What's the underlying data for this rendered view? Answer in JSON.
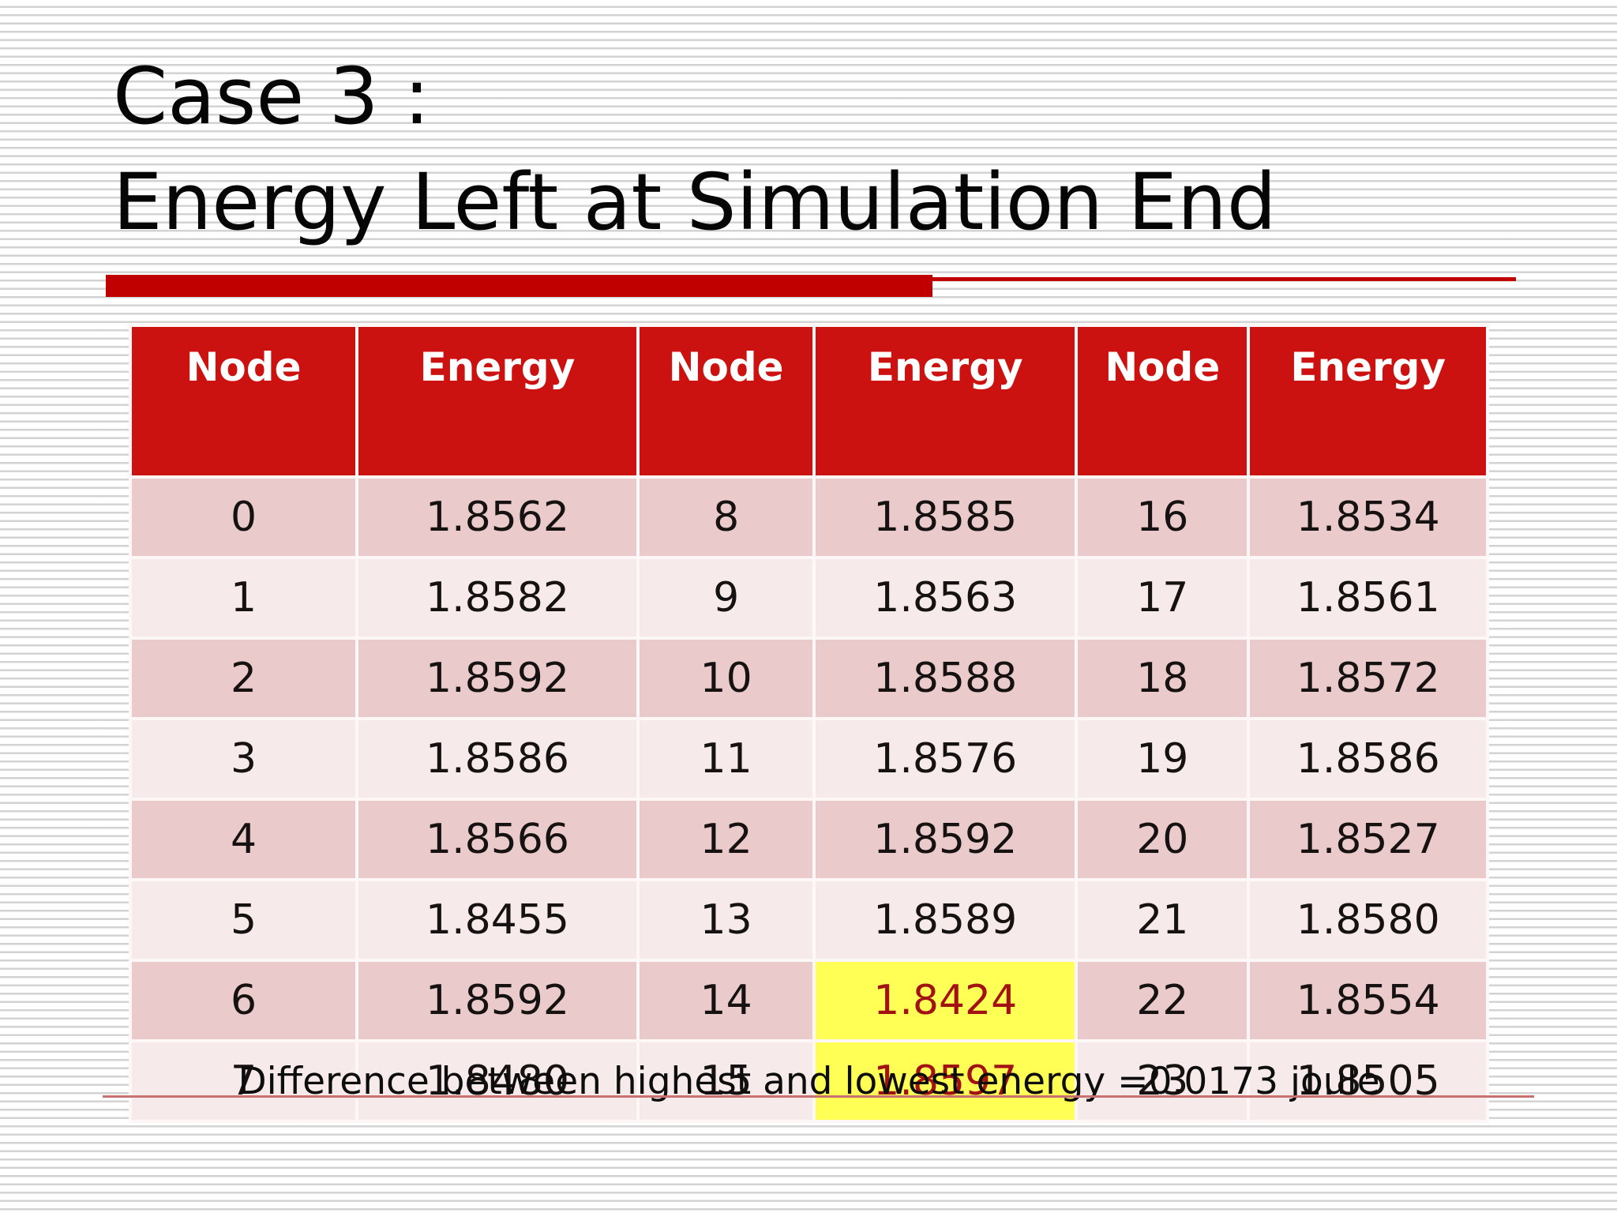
{
  "slide": {
    "title_line1": "Case 3 :",
    "title_line2": "Energy Left at Simulation End",
    "caption": "Difference between highest and lowest energy =0.0173 joule"
  },
  "colors": {
    "header_red": "#cc1111",
    "accent_bar_red": "#c00000",
    "row_dark": "#eacaca",
    "row_light": "#f7eaea",
    "highlight_yellow": "#ffff55",
    "highlight_text": "#a31212",
    "caption_line": "#c97070"
  },
  "table": {
    "headers": [
      "Node",
      "Energy",
      "Node",
      "Energy",
      "Node",
      "Energy"
    ],
    "rows": [
      [
        "0",
        "1.8562",
        "8",
        "1.8585",
        "16",
        "1.8534"
      ],
      [
        "1",
        "1.8582",
        "9",
        "1.8563",
        "17",
        "1.8561"
      ],
      [
        "2",
        "1.8592",
        "10",
        "1.8588",
        "18",
        "1.8572"
      ],
      [
        "3",
        "1.8586",
        "11",
        "1.8576",
        "19",
        "1.8586"
      ],
      [
        "4",
        "1.8566",
        "12",
        "1.8592",
        "20",
        "1.8527"
      ],
      [
        "5",
        "1.8455",
        "13",
        "1.8589",
        "21",
        "1.8580"
      ],
      [
        "6",
        "1.8592",
        "14",
        "1.8424",
        "22",
        "1.8554"
      ],
      [
        "7",
        "1.8480",
        "15",
        "1.8597",
        "23",
        "1.8505"
      ]
    ],
    "highlight_cells": [
      [
        6,
        3
      ],
      [
        7,
        3
      ]
    ],
    "highlight_meaning": "lowest and highest energy values"
  }
}
